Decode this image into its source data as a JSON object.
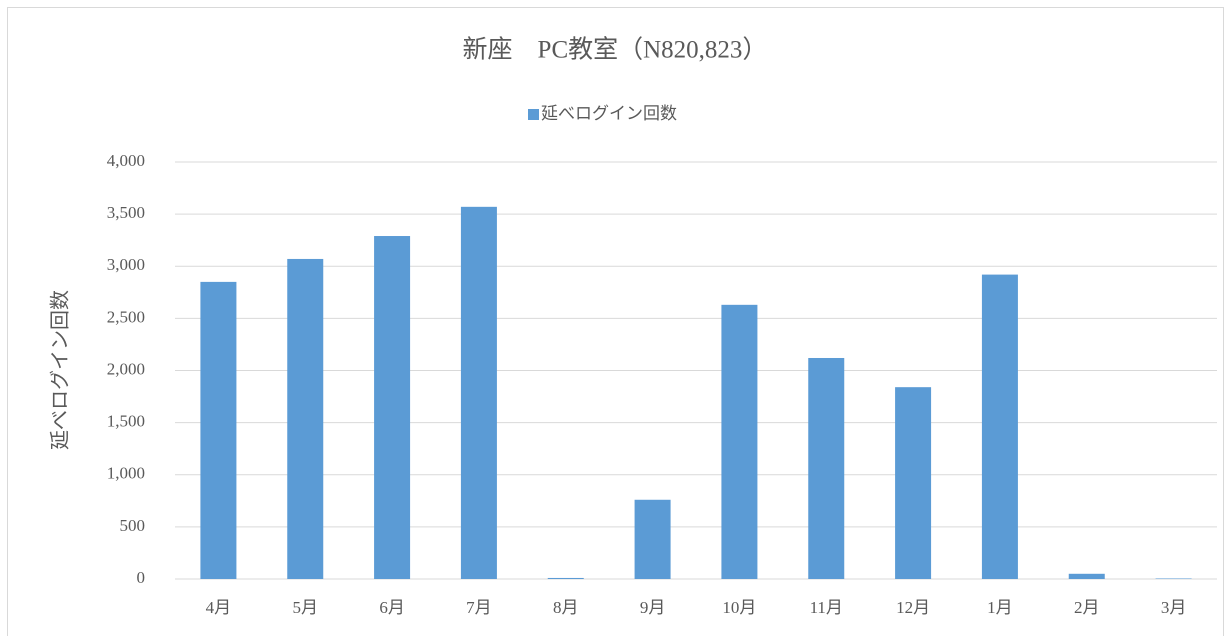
{
  "chart_data": {
    "type": "bar",
    "title": "新座　PC教室（N820,823）",
    "y_label": "延べログイン回数",
    "categories": [
      "4月",
      "5月",
      "6月",
      "7月",
      "8月",
      "9月",
      "10月",
      "11月",
      "12月",
      "1月",
      "2月",
      "3月"
    ],
    "series": [
      {
        "name": "延べログイン回数",
        "color": "#5b9bd5",
        "values": [
          2850,
          3070,
          3290,
          3570,
          10,
          760,
          2630,
          2120,
          1840,
          2920,
          50,
          5
        ]
      }
    ],
    "ylim": [
      0,
      4000
    ],
    "yticks": [
      0,
      500,
      {
        "value": 1000,
        "label": "1,000"
      },
      {
        "value": 1500,
        "label": "1,500"
      },
      {
        "value": 2000,
        "label": "2,000"
      },
      {
        "value": 2500,
        "label": "2,500"
      },
      {
        "value": 3000,
        "label": "3,000"
      },
      {
        "value": 3500,
        "label": "3,500"
      },
      {
        "value": 4000,
        "label": "4,000"
      }
    ],
    "grid": true,
    "legend": "top"
  }
}
